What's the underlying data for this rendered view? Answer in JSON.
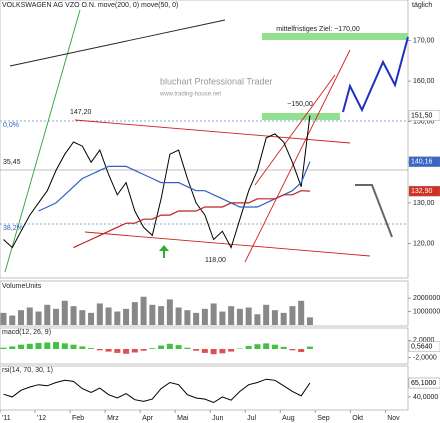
{
  "chart_data": [
    {
      "type": "line",
      "title": "VOLKSWAGEN AG VZO O.N. move(200, 0) move(50, 0)",
      "period": "täglich",
      "watermark": [
        "bluchart Professional Trader",
        "www.trading-house.net"
      ],
      "annotations": [
        "mittelfristiges Ziel: ~170,00",
        "~150,00",
        "147,20",
        "118,00",
        "0,0%",
        "38,2%",
        "35,45"
      ],
      "x": [
        0.1,
        0.35,
        0.6,
        0.85,
        1.1,
        1.35,
        1.6,
        1.85,
        2.1,
        2.35,
        2.6,
        2.85,
        3.1,
        3.35,
        3.6,
        3.85,
        4.1,
        4.35,
        4.6,
        4.85,
        5.1,
        5.35,
        5.6,
        5.85,
        6.1,
        6.35,
        6.6,
        6.85,
        7.1,
        7.35,
        7.6,
        7.85,
        8.1,
        8.35,
        8.6,
        8.85
      ],
      "xlim": [
        0,
        11.65
      ],
      "xticks": [
        {
          "value": 0,
          "label": "'11"
        },
        {
          "value": 1,
          "label": "'12"
        },
        {
          "value": 2,
          "label": "Feb"
        },
        {
          "value": 3,
          "label": "Mrz"
        },
        {
          "value": 4,
          "label": "Apr"
        },
        {
          "value": 5,
          "label": "Mai"
        },
        {
          "value": 6,
          "label": "Jun"
        },
        {
          "value": 7,
          "label": "Jul"
        },
        {
          "value": 8,
          "label": "Aug"
        },
        {
          "value": 9,
          "label": "Sep"
        },
        {
          "value": 10,
          "label": "Okt"
        },
        {
          "value": 11,
          "label": "Nov"
        }
      ],
      "ylim": [
        112,
        178
      ],
      "yticks": [
        {
          "value": 120,
          "label": "120,00"
        },
        {
          "value": 130,
          "label": "130,00"
        },
        {
          "value": 140,
          "label": "140,00"
        },
        {
          "value": 150,
          "label": "150,00"
        },
        {
          "value": 160,
          "label": "160,00"
        },
        {
          "value": 170,
          "label": "170,00"
        }
      ],
      "series": [
        {
          "name": "close",
          "color": "#000000",
          "values": [
            121,
            119,
            123,
            127,
            130,
            133,
            138,
            142,
            145,
            144,
            140,
            143,
            137,
            132,
            135,
            128,
            124,
            122,
            131,
            142,
            143,
            136,
            130,
            127,
            121,
            123,
            119,
            126,
            133,
            138,
            146,
            147,
            145,
            140,
            134,
            151.5
          ],
          "last_label": "151,50",
          "label_bg": "#ffffff",
          "label_fg": "#000000"
        },
        {
          "name": "move(50, 0)",
          "color": "#3060c0",
          "values": [
            null,
            null,
            null,
            null,
            128,
            129,
            130,
            132,
            134,
            136,
            137,
            138,
            139,
            139,
            139,
            138,
            137,
            136,
            135,
            135,
            135,
            134,
            133,
            133,
            132,
            131,
            130,
            129,
            129,
            129,
            130,
            131,
            132,
            133,
            135,
            140.16
          ],
          "last_label": "140,16",
          "label_bg": "#3a66c8",
          "label_fg": "#ffffff"
        },
        {
          "name": "move(200, 0)",
          "color": "#c02020",
          "values": [
            null,
            null,
            null,
            null,
            null,
            null,
            null,
            null,
            119,
            120,
            121,
            122,
            123,
            124,
            125,
            125,
            126,
            126,
            127,
            127,
            128,
            128,
            128,
            129,
            129,
            129,
            130,
            130,
            130,
            131,
            131,
            131,
            132,
            132,
            133,
            132.9
          ],
          "last_label": "132,90",
          "label_bg": "#d03020",
          "label_fg": "#ffffff"
        }
      ]
    },
    {
      "type": "bar",
      "title": "VolumeUnits",
      "color": "#888888",
      "values": [
        900000,
        700000,
        1100000,
        1300000,
        1000000,
        1500000,
        1200000,
        1800000,
        1400000,
        1100000,
        900000,
        1600000,
        1300000,
        1000000,
        1200000,
        1700000,
        2100000,
        1500000,
        1400000,
        1900000,
        1300000,
        1100000,
        900000,
        1200000,
        1600000,
        1000000,
        1400000,
        1200000,
        1300000,
        800000,
        1500000,
        1100000,
        900000,
        1400000,
        1800000,
        566627
      ],
      "ylim": [
        0,
        2600000
      ],
      "yticks": [
        1000000,
        2000000
      ]
    },
    {
      "type": "bar",
      "title": "macd(12, 26, 9)",
      "colors": {
        "up": "#44c044",
        "down": "#e05050"
      },
      "values": [
        0.3,
        0.6,
        1.0,
        1.2,
        1.4,
        1.5,
        1.6,
        1.3,
        1.0,
        0.6,
        0.2,
        -0.3,
        -0.6,
        -0.9,
        -1.1,
        -0.8,
        -0.4,
        0.2,
        0.8,
        1.2,
        0.9,
        0.3,
        -0.4,
        -0.9,
        -1.2,
        -1.0,
        -0.6,
        0.1,
        0.7,
        1.1,
        1.3,
        1.0,
        0.5,
        -0.3,
        -0.7,
        0.564
      ],
      "last_label": "0,5640",
      "ylim": [
        -3,
        3
      ],
      "yticks": [
        {
          "value": 2,
          "label": "2,0000"
        },
        {
          "value": -2,
          "label": "-2,0000"
        }
      ]
    },
    {
      "type": "line",
      "title": "rsi(14, 70, 30, 1)",
      "color": "#000000",
      "values": [
        45,
        40,
        52,
        58,
        62,
        60,
        66,
        70,
        68,
        55,
        48,
        56,
        44,
        38,
        46,
        35,
        32,
        36,
        55,
        66,
        62,
        44,
        38,
        36,
        30,
        40,
        34,
        50,
        62,
        66,
        72,
        70,
        60,
        50,
        42,
        65.1
      ],
      "last_label": "65,1000",
      "ylim": [
        20,
        85
      ],
      "yticks": [
        {
          "value": 40,
          "label": "40,0000"
        }
      ]
    }
  ]
}
